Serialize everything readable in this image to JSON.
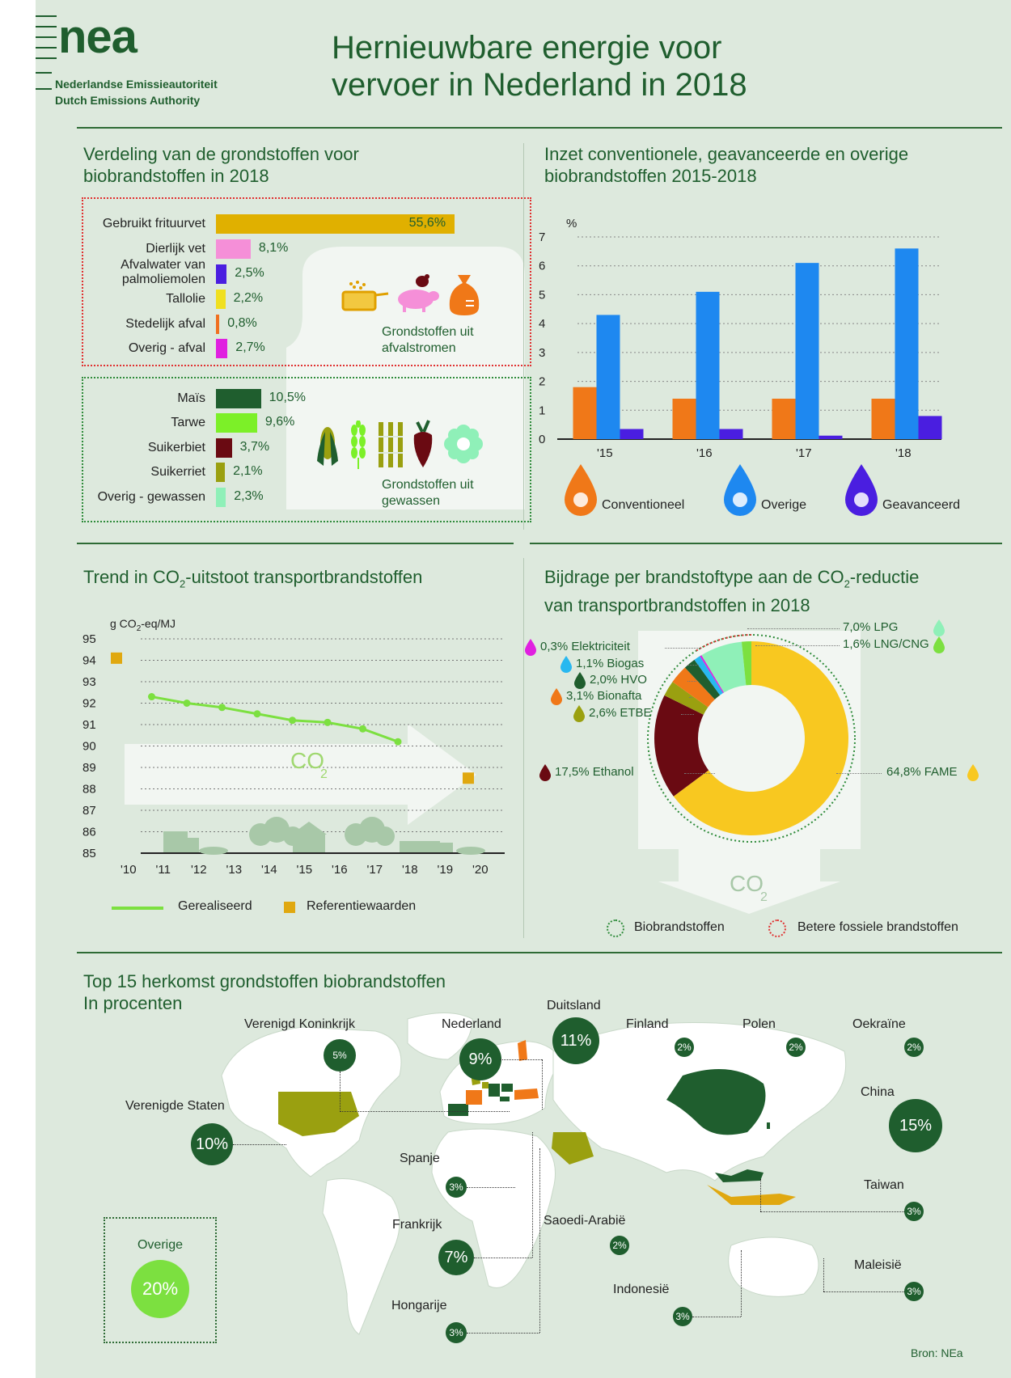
{
  "logo": {
    "text": "nea",
    "line1": "Nederlandse Emissieautoriteit",
    "line2": "Dutch Emissions Authority"
  },
  "title": {
    "line1": "Hernieuwbare energie voor",
    "line2": "vervoer in Nederland in 2018"
  },
  "feedstock": {
    "title_l1": "Verdeling van de grondstoffen voor",
    "title_l2": "biobrandstoffen in 2018",
    "waste_caption_l1": "Grondstoffen uit",
    "waste_caption_l2": "afvalstromen",
    "crops_caption_l1": "Grondstoffen uit",
    "crops_caption_l2": "gewassen"
  },
  "conv": {
    "title_l1": "Inzet conventionele, geavanceerde en overige",
    "title_l2": "biobrandstoffen 2015-2018",
    "unit": "%"
  },
  "trend": {
    "title_pre": "Trend in CO",
    "title_sub": "2",
    "title_post": "-uitstoot transportbrandstoffen",
    "unit_pre": "g CO",
    "unit_sub": "2",
    "unit_post": "-eq/MJ",
    "co2": "CO",
    "co2_sub": "2",
    "legend_realised": "Gerealiseerd",
    "legend_reference": "Referentiewaarden"
  },
  "donut": {
    "title_l1_pre": "Bijdrage per brandstoftype aan de CO",
    "title_l1_sub": "2",
    "title_l1_post": "-reductie",
    "title_l2": "van transportbrandstoffen in 2018",
    "co2": "CO",
    "co2_sub": "2",
    "legend_bio": "Biobrandstoffen",
    "legend_fossil": "Betere fossiele brandstoffen"
  },
  "map": {
    "title_l1": "Top 15 herkomst grondstoffen biobrandstoffen",
    "title_l2": "In procenten",
    "source": "Bron: NEa",
    "other_label": "Overige",
    "other_value": "20%"
  },
  "chart_data": [
    {
      "type": "bar",
      "orientation": "horizontal",
      "title": "Verdeling van de grondstoffen voor biobrandstoffen in 2018",
      "groups": [
        {
          "name": "Grondstoffen uit afvalstromen",
          "items": [
            {
              "label": "Gebruikt frituurvet",
              "value": 55.6,
              "text": "55,6%",
              "color": "#e0b000"
            },
            {
              "label": "Dierlijk vet",
              "value": 8.1,
              "text": "8,1%",
              "color": "#f58fd8"
            },
            {
              "label": "Afvalwater van palmoliemolen",
              "value": 2.5,
              "text": "2,5%",
              "color": "#4a1ee0"
            },
            {
              "label": "Tallolie",
              "value": 2.2,
              "text": "2,2%",
              "color": "#f0e020"
            },
            {
              "label": "Stedelijk afval",
              "value": 0.8,
              "text": "0,8%",
              "color": "#f07020"
            },
            {
              "label": "Overig - afval",
              "value": 2.7,
              "text": "2,7%",
              "color": "#e020e0"
            }
          ]
        },
        {
          "name": "Grondstoffen uit gewassen",
          "items": [
            {
              "label": "Maïs",
              "value": 10.5,
              "text": "10,5%",
              "color": "#1f5e2e"
            },
            {
              "label": "Tarwe",
              "value": 9.6,
              "text": "9,6%",
              "color": "#7cf028"
            },
            {
              "label": "Suikerbiet",
              "value": 3.7,
              "text": "3,7%",
              "color": "#6a0a12"
            },
            {
              "label": "Suikerriet",
              "value": 2.1,
              "text": "2,1%",
              "color": "#9aa010"
            },
            {
              "label": "Overig - gewassen",
              "value": 2.3,
              "text": "2,3%",
              "color": "#8ff0b8"
            }
          ]
        }
      ]
    },
    {
      "type": "bar",
      "title": "Inzet conventionele, geavanceerde en overige biobrandstoffen 2015-2018",
      "categories": [
        "'15",
        "'16",
        "'17",
        "'18"
      ],
      "ylabel": "%",
      "ylim": [
        0,
        7
      ],
      "yticks": [
        "0",
        "1",
        "2",
        "3",
        "4",
        "5",
        "6",
        "7"
      ],
      "series": [
        {
          "name": "Conventioneel",
          "color": "#f07818",
          "values": [
            1.8,
            1.4,
            1.4,
            1.4
          ]
        },
        {
          "name": "Overige",
          "color": "#1e88f0",
          "values": [
            4.3,
            5.1,
            6.1,
            6.6
          ]
        },
        {
          "name": "Geavanceerd",
          "color": "#4a1ee0",
          "values": [
            0.35,
            0.35,
            0.12,
            0.8
          ]
        }
      ]
    },
    {
      "type": "line",
      "title": "Trend in CO2-uitstoot transportbrandstoffen",
      "ylabel": "g CO2-eq/MJ",
      "ylim": [
        85,
        95
      ],
      "yticks": [
        "85",
        "86",
        "87",
        "88",
        "89",
        "90",
        "91",
        "92",
        "93",
        "94",
        "95"
      ],
      "xticks": [
        "'10",
        "'11",
        "'12",
        "'13",
        "'14",
        "'15",
        "'16",
        "'17",
        "'18",
        "'19",
        "'20"
      ],
      "series": [
        {
          "name": "Gerealiseerd",
          "color": "#7ce040",
          "x": [
            "'11",
            "'12",
            "'13",
            "'14",
            "'15",
            "'16",
            "'17",
            "'18"
          ],
          "values": [
            92.3,
            92.0,
            91.8,
            91.5,
            91.2,
            91.1,
            90.8,
            90.2
          ]
        },
        {
          "name": "Referentiewaarden",
          "color": "#e0a810",
          "x": [
            "'10",
            "'20"
          ],
          "values": [
            94.1,
            88.5
          ]
        }
      ]
    },
    {
      "type": "pie",
      "title": "Bijdrage per brandstoftype aan de CO2-reductie van transportbrandstoffen in 2018",
      "slices": [
        {
          "label": "FAME",
          "value": 64.8,
          "text": "64,8% FAME",
          "color": "#f8c820",
          "group": "bio"
        },
        {
          "label": "Ethanol",
          "value": 17.5,
          "text": "17,5% Ethanol",
          "color": "#6a0a12",
          "group": "bio"
        },
        {
          "label": "ETBE",
          "value": 2.6,
          "text": "2,6% ETBE",
          "color": "#9aa010",
          "group": "bio"
        },
        {
          "label": "Bionafta",
          "value": 3.1,
          "text": "3,1% Bionafta",
          "color": "#f07818",
          "group": "bio"
        },
        {
          "label": "HVO",
          "value": 2.0,
          "text": "2,0% HVO",
          "color": "#1f5e2e",
          "group": "bio"
        },
        {
          "label": "Biogas",
          "value": 1.1,
          "text": "1,1% Biogas",
          "color": "#28b8f0",
          "group": "bio"
        },
        {
          "label": "Elektriciteit",
          "value": 0.3,
          "text": "0,3% Elektriciteit",
          "color": "#e020e0",
          "group": "fossil"
        },
        {
          "label": "LPG",
          "value": 7.0,
          "text": "7,0% LPG",
          "color": "#8ff0b8",
          "group": "fossil"
        },
        {
          "label": "LNG/CNG",
          "value": 1.6,
          "text": "1,6% LNG/CNG",
          "color": "#7ce040",
          "group": "fossil"
        }
      ]
    },
    {
      "type": "table",
      "title": "Top 15 herkomst grondstoffen biobrandstoffen",
      "rows": [
        {
          "country": "Verenigd Koninkrijk",
          "value": 5
        },
        {
          "country": "Nederland",
          "value": 9
        },
        {
          "country": "Duitsland",
          "value": 11
        },
        {
          "country": "Finland",
          "value": 2
        },
        {
          "country": "Polen",
          "value": 2
        },
        {
          "country": "Oekraïne",
          "value": 2
        },
        {
          "country": "China",
          "value": 15
        },
        {
          "country": "Verenigde Staten",
          "value": 10
        },
        {
          "country": "Spanje",
          "value": 3
        },
        {
          "country": "Taiwan",
          "value": 3
        },
        {
          "country": "Frankrijk",
          "value": 7
        },
        {
          "country": "Saoedi-Arabië",
          "value": 2
        },
        {
          "country": "Maleisië",
          "value": 3
        },
        {
          "country": "Indonesië",
          "value": 3
        },
        {
          "country": "Hongarije",
          "value": 3
        },
        {
          "country": "Overige",
          "value": 20
        }
      ]
    }
  ]
}
